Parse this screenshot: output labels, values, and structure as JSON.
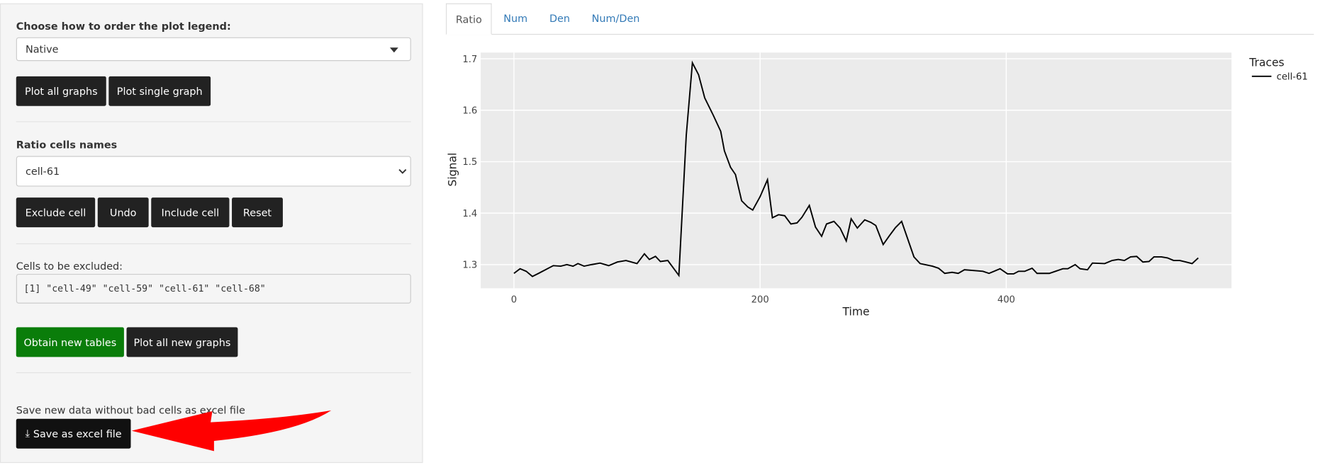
{
  "sidebar": {
    "legend_order_label": "Choose how to order the plot legend:",
    "legend_order_value": "Native",
    "plot_all": "Plot all graphs",
    "plot_single": "Plot single graph",
    "cells_label": "Ratio cells names",
    "cells_value": "cell-61",
    "exclude": "Exclude cell",
    "undo": "Undo",
    "include": "Include cell",
    "reset": "Reset",
    "excluded_label": "Cells to be excluded:",
    "excluded_output": "[1] \"cell-49\" \"cell-59\" \"cell-61\" \"cell-68\"",
    "obtain_tables": "Obtain new tables",
    "plot_new": "Plot all new graphs",
    "save_label": "Save new data without bad cells as excel file",
    "save_button": "Save as excel file"
  },
  "tabs": [
    "Ratio",
    "Num",
    "Den",
    "Num/Den"
  ],
  "chart_data": {
    "type": "line",
    "xlabel": "Time",
    "ylabel": "Signal",
    "legend_title": "Traces",
    "grid": true,
    "xlim": [
      -27,
      583
    ],
    "ylim": [
      1.254,
      1.712
    ],
    "xticks": [
      0,
      200,
      400
    ],
    "yticks": [
      1.3,
      1.4,
      1.5,
      1.6,
      1.7
    ],
    "x": [
      0,
      5,
      10,
      15,
      20,
      28,
      32,
      38,
      43,
      48,
      52,
      57,
      63,
      70,
      77,
      84,
      91,
      100,
      106,
      110,
      115,
      119,
      125,
      134,
      140,
      145,
      150,
      155,
      162,
      168,
      171,
      176,
      180,
      185,
      190,
      194,
      200,
      206,
      210,
      215,
      220,
      225,
      230,
      234,
      240,
      245,
      250,
      254,
      260,
      265,
      270,
      274,
      279,
      285,
      290,
      294,
      300,
      305,
      310,
      315,
      325,
      330,
      340,
      345,
      350,
      356,
      361,
      366,
      376,
      381,
      386,
      390,
      395,
      401,
      406,
      410,
      415,
      421,
      425,
      435,
      440,
      446,
      450,
      456,
      460,
      466,
      470,
      480,
      486,
      491,
      496,
      501,
      506,
      511,
      516,
      520,
      526,
      531,
      536,
      541,
      546,
      551,
      556
    ],
    "series": [
      {
        "name": "cell-61",
        "color": "#000000",
        "values": [
          1.283,
          1.292,
          1.287,
          1.277,
          1.283,
          1.293,
          1.298,
          1.297,
          1.3,
          1.297,
          1.302,
          1.297,
          1.3,
          1.303,
          1.298,
          1.305,
          1.308,
          1.302,
          1.321,
          1.31,
          1.316,
          1.306,
          1.308,
          1.279,
          1.551,
          1.692,
          1.669,
          1.624,
          1.59,
          1.559,
          1.521,
          1.489,
          1.475,
          1.424,
          1.412,
          1.406,
          1.432,
          1.465,
          1.391,
          1.397,
          1.395,
          1.379,
          1.381,
          1.392,
          1.415,
          1.373,
          1.355,
          1.379,
          1.384,
          1.371,
          1.346,
          1.389,
          1.371,
          1.387,
          1.382,
          1.376,
          1.339,
          1.356,
          1.372,
          1.384,
          1.315,
          1.302,
          1.297,
          1.293,
          1.283,
          1.285,
          1.283,
          1.29,
          1.288,
          1.287,
          1.283,
          1.287,
          1.292,
          1.282,
          1.282,
          1.287,
          1.287,
          1.293,
          1.283,
          1.283,
          1.287,
          1.292,
          1.292,
          1.3,
          1.292,
          1.29,
          1.303,
          1.302,
          1.308,
          1.31,
          1.308,
          1.315,
          1.316,
          1.305,
          1.306,
          1.315,
          1.315,
          1.313,
          1.308,
          1.308,
          1.305,
          1.302,
          1.313
        ]
      }
    ]
  }
}
